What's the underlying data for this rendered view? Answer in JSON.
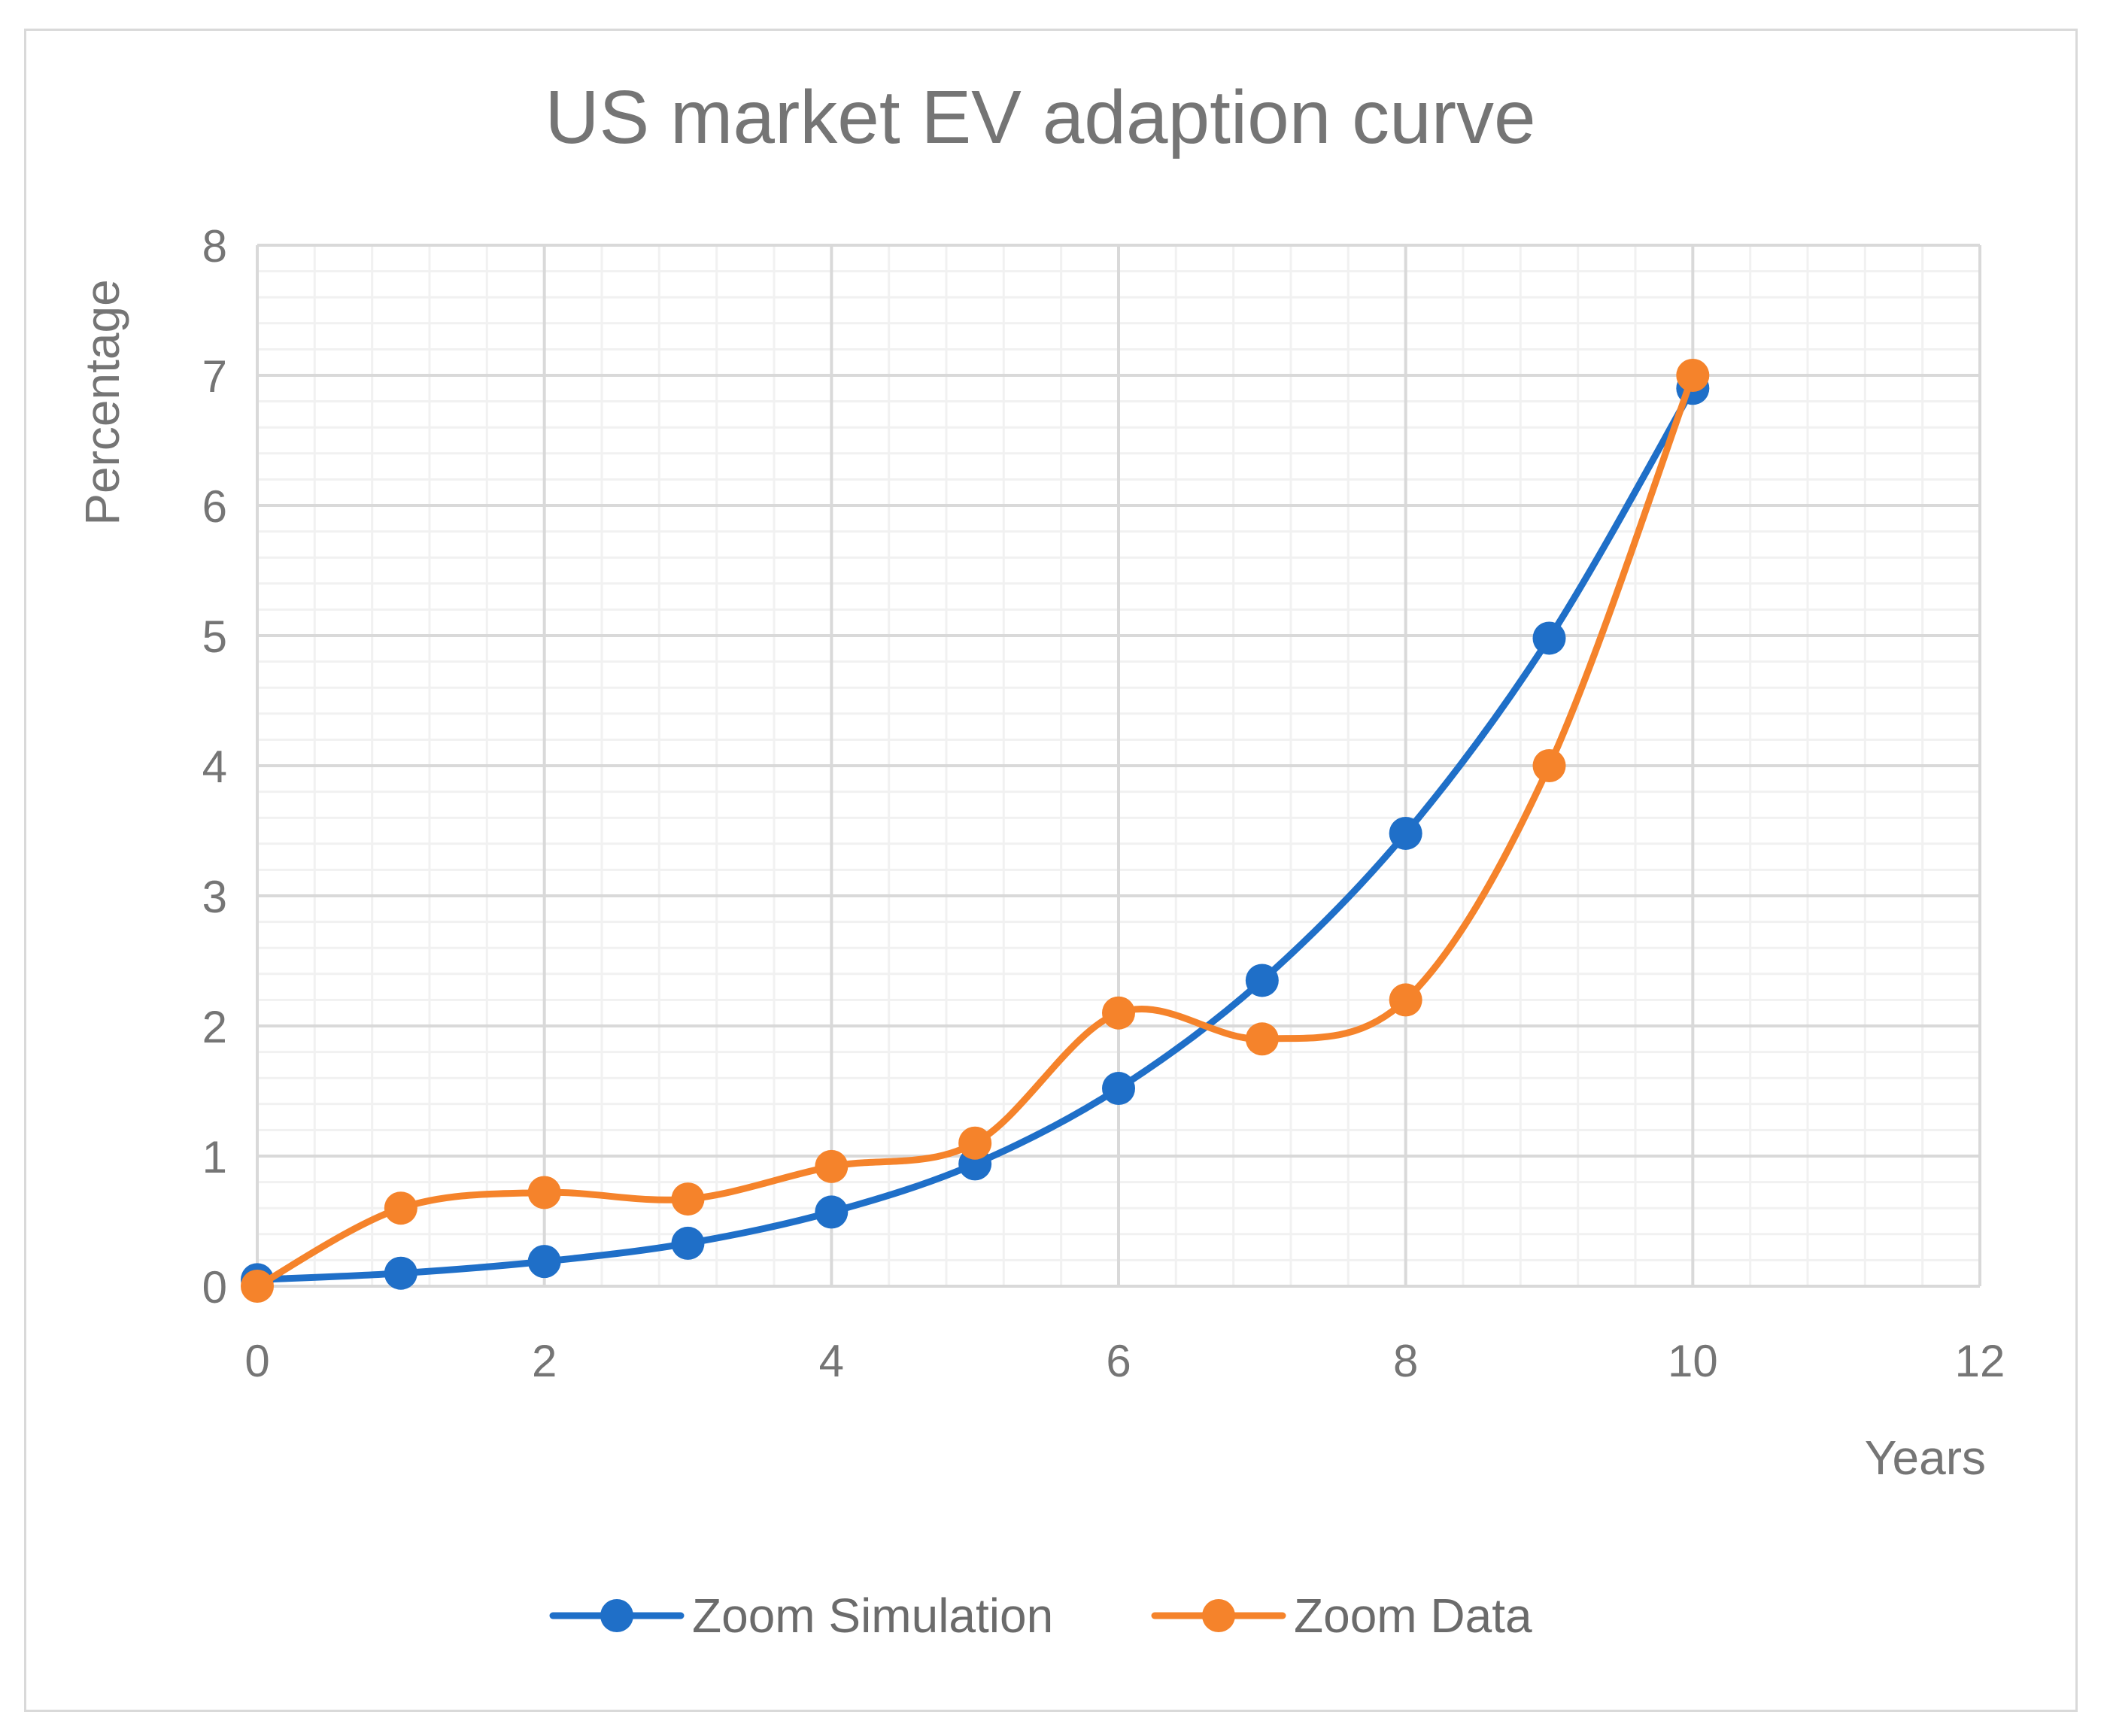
{
  "chart_data": {
    "type": "line",
    "title": "US market EV adaption curve",
    "xlabel": "Years",
    "ylabel": "Percentage",
    "xlim": [
      0,
      12
    ],
    "ylim": [
      0,
      8
    ],
    "x_ticks": [
      "0",
      "2",
      "4",
      "6",
      "8",
      "10",
      "12"
    ],
    "y_ticks": [
      "0",
      "1",
      "2",
      "3",
      "4",
      "5",
      "6",
      "7",
      "8"
    ],
    "grid": "on",
    "legend_position": "bottom",
    "series": [
      {
        "name": "Zoom Simulation",
        "color": "#1f6fc8",
        "x": [
          0,
          1,
          2,
          3,
          4,
          5,
          6,
          7,
          8,
          9,
          10
        ],
        "y": [
          0.05,
          0.1,
          0.19,
          0.33,
          0.57,
          0.94,
          1.52,
          2.35,
          3.48,
          4.98,
          6.9
        ]
      },
      {
        "name": "Zoom Data",
        "color": "#f5832b",
        "x": [
          0,
          1,
          2,
          3,
          4,
          5,
          6,
          7,
          8,
          9,
          10
        ],
        "y": [
          0.0,
          0.6,
          0.72,
          0.67,
          0.92,
          1.1,
          2.1,
          1.9,
          2.2,
          4.0,
          7.0
        ]
      }
    ]
  }
}
